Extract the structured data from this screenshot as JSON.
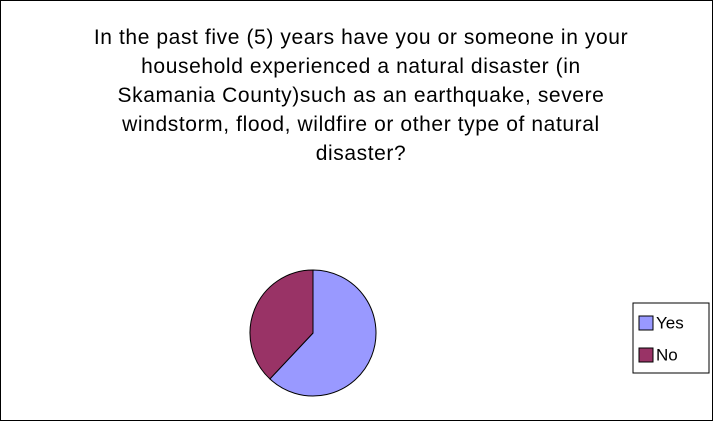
{
  "chart_data": {
    "type": "pie",
    "title": "In the past five (5) years have you or someone in your household experienced a natural disaster (in Skamania County)such as an earthquake, severe windstorm, flood, wildfire or other type of natural disaster?",
    "categories": [
      "Yes",
      "No"
    ],
    "values": [
      62,
      38
    ],
    "colors": [
      "#9999ff",
      "#993366"
    ],
    "legend": "right"
  }
}
